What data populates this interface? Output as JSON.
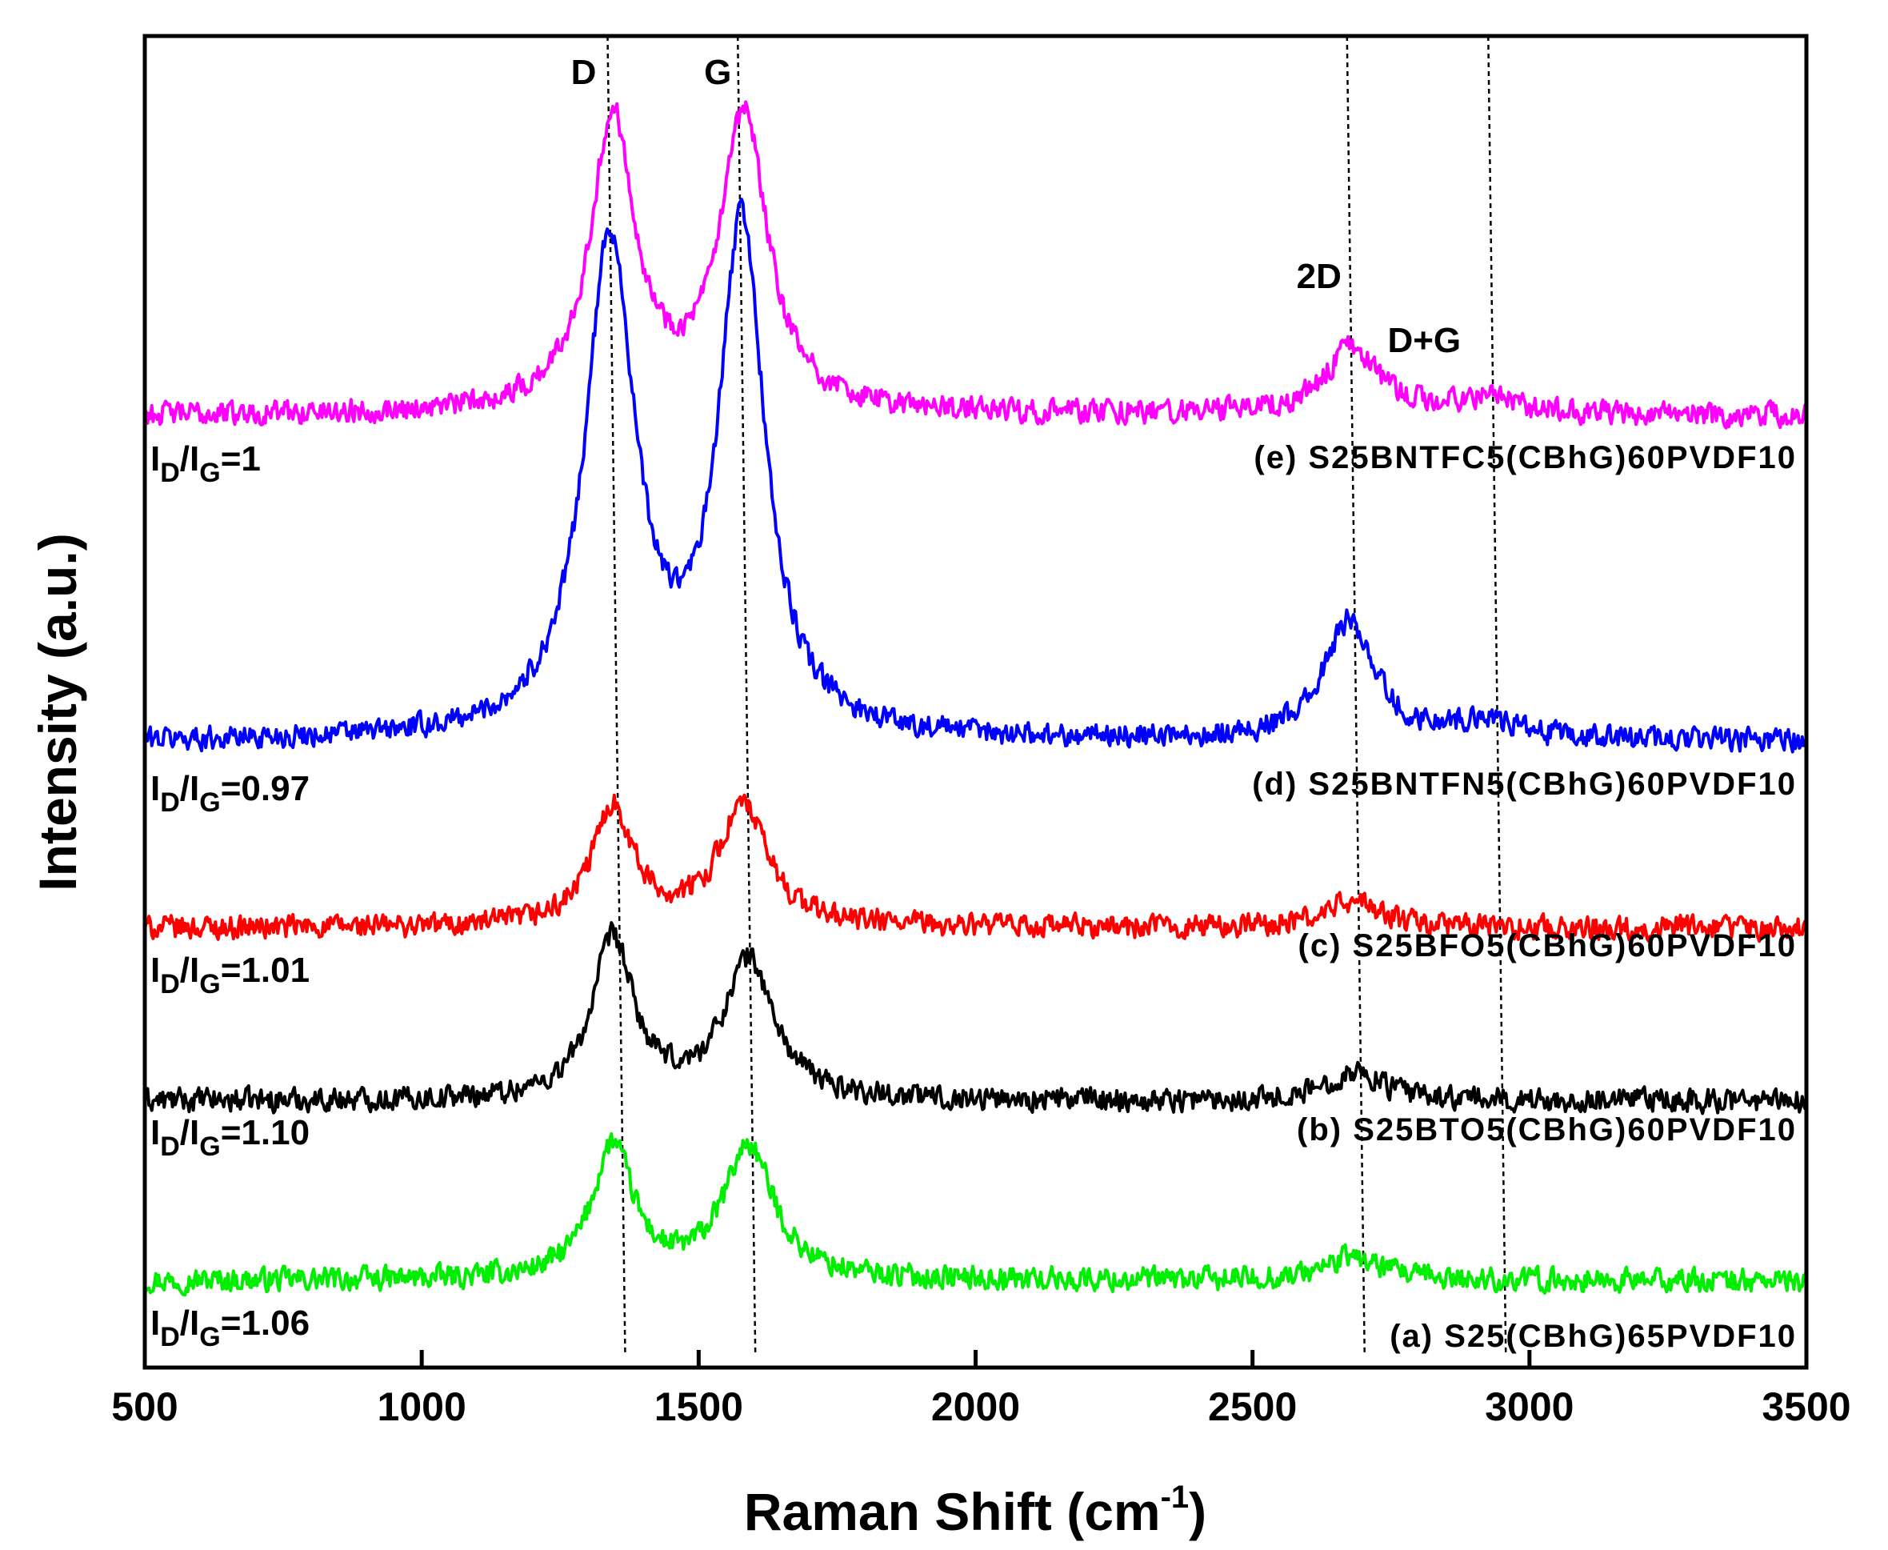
{
  "chart_data": {
    "type": "line",
    "xlabel": "Raman Shift (cm",
    "xlabel_sup": "-1",
    "xlabel_suffix": ")",
    "ylabel": "Intensity (a.u.)",
    "xlim": [
      500,
      3500
    ],
    "ylim": [
      0,
      100
    ],
    "x_ticks": [
      500,
      1000,
      1500,
      2000,
      2500,
      3000,
      3500
    ],
    "x_tick_labels": [
      "500",
      "1000",
      "1500",
      "2000",
      "2500",
      "3000",
      "3500"
    ],
    "y_ticks_shown": false,
    "peak_annotations": [
      {
        "label": "D",
        "x": 1350
      },
      {
        "label": "G",
        "x": 1585
      },
      {
        "label": "2D",
        "x": 2685
      },
      {
        "label": "D+G",
        "x": 2940
      }
    ],
    "series": [
      {
        "id": "a",
        "name": "(a) S25(CBhG)65PVDF10",
        "color": "#00ee00",
        "baseline": 6.5,
        "noise": 0.8,
        "peaks": [
          {
            "x": 1345,
            "h": 10.0,
            "w": 45
          },
          {
            "x": 1590,
            "h": 10.0,
            "w": 55
          },
          {
            "x": 2680,
            "h": 1.8,
            "w": 60
          }
        ],
        "ratio_label": {
          "prefix": "I",
          "sub1": "D",
          "mid": "/I",
          "sub2": "G",
          "value": "=1.06"
        }
      },
      {
        "id": "b",
        "name": "(b) S25BTO5(CBhG)60PVDF10",
        "color": "#000000",
        "baseline": 20.0,
        "noise": 0.8,
        "peaks": [
          {
            "x": 1345,
            "h": 12.0,
            "w": 45
          },
          {
            "x": 1590,
            "h": 10.5,
            "w": 55
          },
          {
            "x": 2685,
            "h": 2.2,
            "w": 60
          }
        ],
        "ratio_label": {
          "prefix": "I",
          "sub1": "D",
          "mid": "/I",
          "sub2": "G",
          "value": "=1.10"
        }
      },
      {
        "id": "c",
        "name": "(c) S25BFO5(CBhG)60PVDF10",
        "color": "#ff0000",
        "baseline": 33.0,
        "noise": 0.8,
        "peaks": [
          {
            "x": 1345,
            "h": 9.0,
            "w": 45
          },
          {
            "x": 1580,
            "h": 9.0,
            "w": 55
          },
          {
            "x": 2680,
            "h": 2.0,
            "w": 60
          }
        ],
        "ratio_label": {
          "prefix": "I",
          "sub1": "D",
          "mid": "/I",
          "sub2": "G",
          "value": "=1.01"
        }
      },
      {
        "id": "d",
        "name": "(d) S25BNTFN5(CBhG)60PVDF10",
        "color": "#0000ff",
        "baseline": 47.0,
        "noise": 0.8,
        "peaks": [
          {
            "x": 1340,
            "h": 37.0,
            "w": 55
          },
          {
            "x": 1578,
            "h": 38.0,
            "w": 50
          },
          {
            "x": 2675,
            "h": 9.0,
            "w": 55
          },
          {
            "x": 2920,
            "h": 1.5,
            "w": 60
          }
        ],
        "ratio_label": {
          "prefix": "I",
          "sub1": "D",
          "mid": "/I",
          "sub2": "G",
          "value": "=0.97"
        }
      },
      {
        "id": "e",
        "name": "(e) S25BNTFC5(CBhG)60PVDF10",
        "color": "#ff00ff",
        "baseline": 71.5,
        "noise": 0.8,
        "peaks": [
          {
            "x": 1345,
            "h": 22.0,
            "w": 50
          },
          {
            "x": 1582,
            "h": 22.0,
            "w": 52
          },
          {
            "x": 2680,
            "h": 5.0,
            "w": 60
          },
          {
            "x": 2920,
            "h": 1.2,
            "w": 60
          }
        ],
        "ratio_label": {
          "prefix": "I",
          "sub1": "D",
          "mid": "/I",
          "sub2": "G",
          "value": "=1"
        }
      }
    ]
  }
}
